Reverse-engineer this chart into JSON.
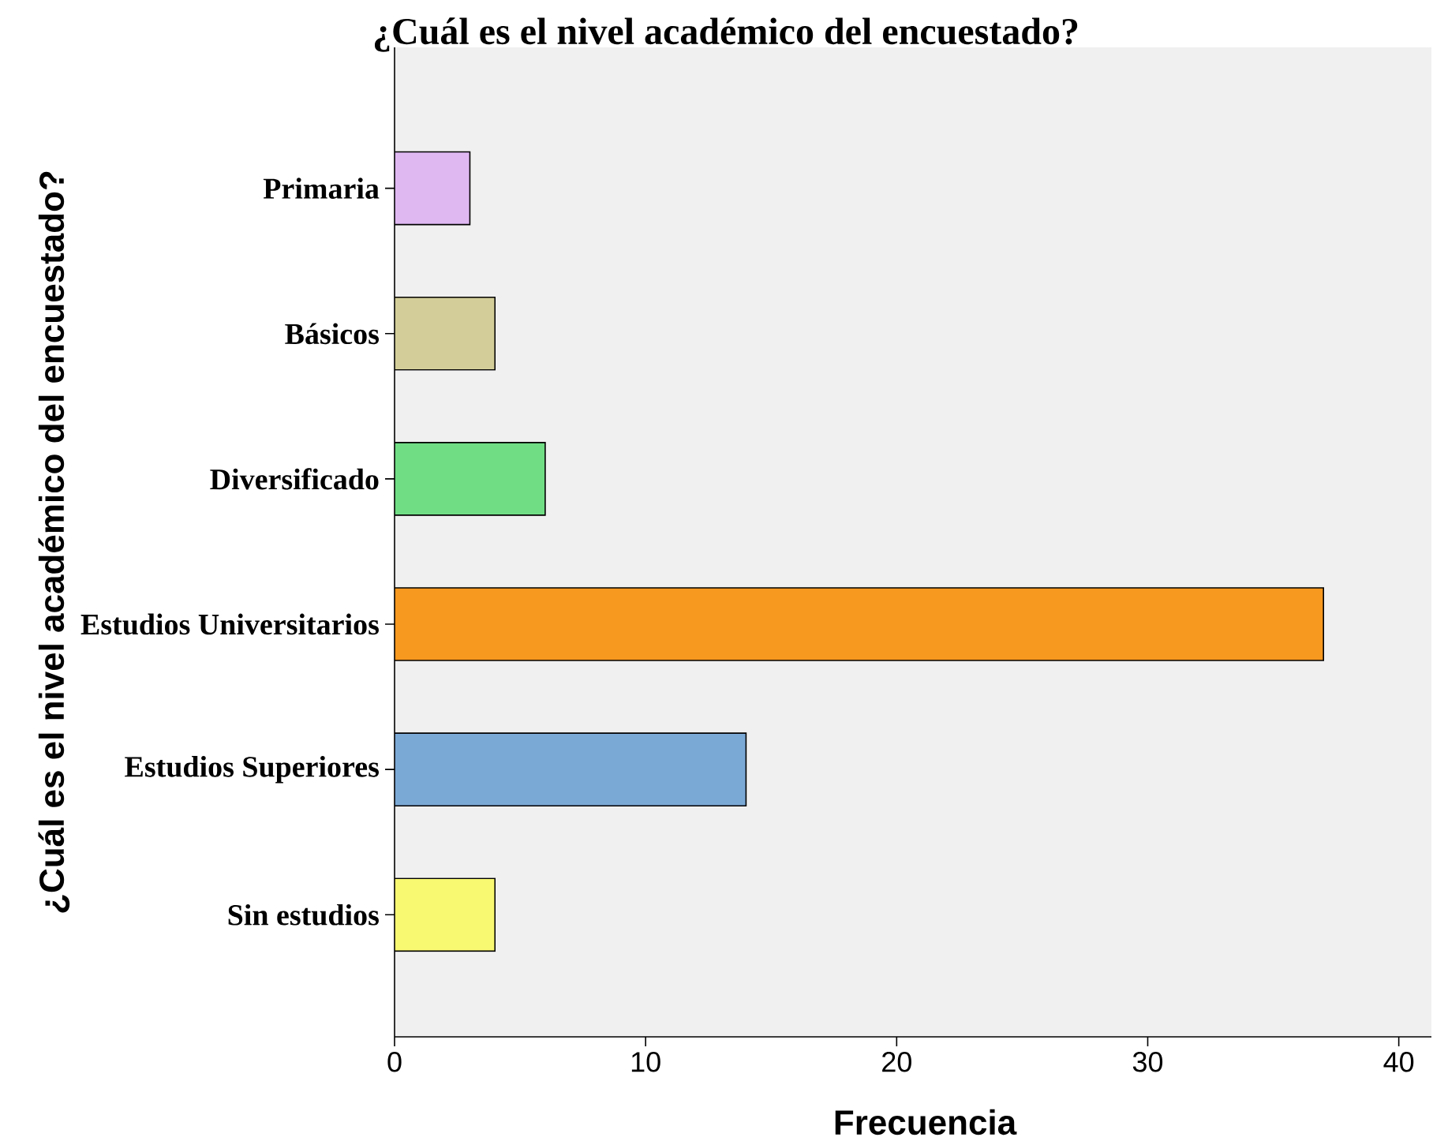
{
  "chart_data": {
    "type": "bar",
    "orientation": "horizontal",
    "title": "¿Cuál es el nivel académico del encuestado?",
    "xlabel": "Frecuencia",
    "ylabel": "¿Cuál es el nivel académico del encuestado?",
    "categories": [
      "Primaria",
      "Básicos",
      "Diversificado",
      "Estudios Universitarios",
      "Estudios Superiores",
      "Sin estudios"
    ],
    "values": [
      3,
      4,
      6,
      37,
      14,
      4
    ],
    "colors": [
      "#dfb8f2",
      "#d3ce99",
      "#70dd84",
      "#f7981f",
      "#7ba9d6",
      "#f9f871"
    ],
    "xlim": [
      0,
      41.3
    ],
    "xticks": [
      0,
      10,
      20,
      30,
      40
    ]
  }
}
